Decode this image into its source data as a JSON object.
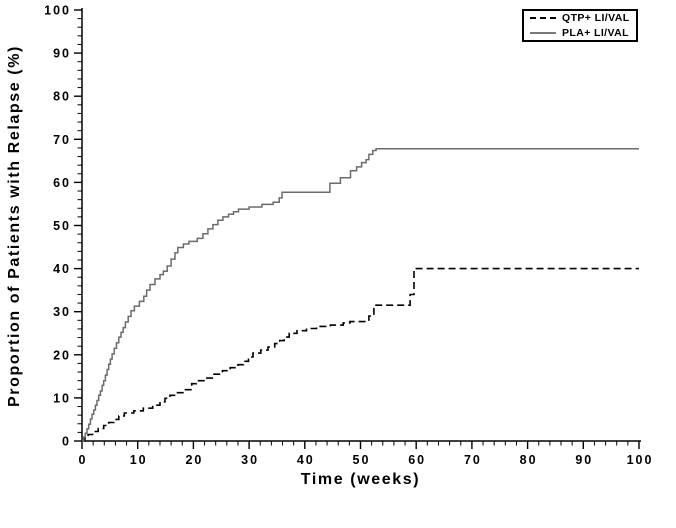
{
  "figure": {
    "background": "#ffffff",
    "axis_color": "#000000",
    "text_color": "#000000"
  },
  "legend": {
    "items": [
      {
        "label": "QTP+ LI/VAL",
        "line_style": "dashed",
        "color": "#000000"
      },
      {
        "label": "PLA+ LI/VAL",
        "line_style": "solid",
        "color": "#7a7a7a"
      }
    ]
  },
  "chart_data": {
    "type": "line",
    "subtype": "kaplan-meier-step",
    "title": "",
    "xlabel": "Time (weeks)",
    "ylabel": "Proportion of Patients with Relapse (%)",
    "xlim": [
      0,
      100
    ],
    "ylim": [
      0,
      100
    ],
    "x_major_ticks": [
      0,
      10,
      20,
      30,
      40,
      50,
      60,
      70,
      80,
      90,
      100
    ],
    "y_major_ticks": [
      0,
      10,
      20,
      30,
      40,
      50,
      60,
      70,
      80,
      90,
      100
    ],
    "x_minor_step": 2,
    "y_minor_step": 2,
    "grid": false,
    "legend_position": "top-right",
    "series": [
      {
        "name": "QTP+ LI/VAL",
        "style": "dashed",
        "color": "#000000",
        "final_value": 40,
        "points": [
          [
            0,
            0
          ],
          [
            0.5,
            0.7
          ],
          [
            1.1,
            1.5
          ],
          [
            1.9,
            2.2
          ],
          [
            2.9,
            2.9
          ],
          [
            3.9,
            3.6
          ],
          [
            4.8,
            4.3
          ],
          [
            5.7,
            5.0
          ],
          [
            6.6,
            5.8
          ],
          [
            7.6,
            6.5
          ],
          [
            9.3,
            7.0
          ],
          [
            11.0,
            7.6
          ],
          [
            12.7,
            8.3
          ],
          [
            14.0,
            9.1
          ],
          [
            14.9,
            9.9
          ],
          [
            15.8,
            10.6
          ],
          [
            17.0,
            11.2
          ],
          [
            18.4,
            11.9
          ],
          [
            19.7,
            13.3
          ],
          [
            20.5,
            14.0
          ],
          [
            22.2,
            14.6
          ],
          [
            23.7,
            15.5
          ],
          [
            25.2,
            16.3
          ],
          [
            26.6,
            17.0
          ],
          [
            28.0,
            17.7
          ],
          [
            29.0,
            18.5
          ],
          [
            29.9,
            19.5
          ],
          [
            30.7,
            20.4
          ],
          [
            32.1,
            21.1
          ],
          [
            33.4,
            21.8
          ],
          [
            34.6,
            22.6
          ],
          [
            35.5,
            23.3
          ],
          [
            36.3,
            24.1
          ],
          [
            37.2,
            25.0
          ],
          [
            38.6,
            25.6
          ],
          [
            40.3,
            26.1
          ],
          [
            42.1,
            26.6
          ],
          [
            44.6,
            26.9
          ],
          [
            46.9,
            27.4
          ],
          [
            48.1,
            27.7
          ],
          [
            51.5,
            29.0
          ],
          [
            52.4,
            31.5
          ],
          [
            58.9,
            34.0
          ],
          [
            59.6,
            40.0
          ],
          [
            100,
            40.0
          ]
        ]
      },
      {
        "name": "PLA+ LI/VAL",
        "style": "solid",
        "color": "#6b6b6b",
        "final_value": 68,
        "points": [
          [
            0,
            0
          ],
          [
            0.3,
            0.9
          ],
          [
            0.6,
            1.8
          ],
          [
            0.9,
            2.8
          ],
          [
            1.2,
            3.9
          ],
          [
            1.5,
            5.1
          ],
          [
            1.8,
            6.2
          ],
          [
            2.1,
            7.2
          ],
          [
            2.4,
            8.3
          ],
          [
            2.7,
            9.4
          ],
          [
            3.0,
            10.6
          ],
          [
            3.3,
            11.6
          ],
          [
            3.6,
            12.9
          ],
          [
            3.9,
            14.0
          ],
          [
            4.2,
            15.3
          ],
          [
            4.5,
            16.6
          ],
          [
            4.8,
            17.8
          ],
          [
            5.1,
            19.0
          ],
          [
            5.4,
            20.2
          ],
          [
            5.8,
            21.5
          ],
          [
            6.2,
            22.8
          ],
          [
            6.6,
            24.1
          ],
          [
            7.0,
            25.2
          ],
          [
            7.4,
            26.3
          ],
          [
            7.8,
            27.6
          ],
          [
            8.3,
            28.9
          ],
          [
            8.8,
            30.2
          ],
          [
            9.4,
            31.3
          ],
          [
            10.3,
            32.4
          ],
          [
            11.1,
            33.6
          ],
          [
            11.6,
            35.0
          ],
          [
            12.2,
            36.3
          ],
          [
            13.1,
            37.6
          ],
          [
            14.0,
            38.6
          ],
          [
            14.6,
            39.4
          ],
          [
            15.3,
            40.6
          ],
          [
            16.0,
            42.2
          ],
          [
            16.7,
            43.7
          ],
          [
            17.2,
            44.9
          ],
          [
            18.2,
            45.7
          ],
          [
            19.2,
            46.3
          ],
          [
            20.7,
            47.0
          ],
          [
            21.7,
            48.1
          ],
          [
            22.6,
            49.2
          ],
          [
            23.5,
            50.2
          ],
          [
            24.4,
            51.2
          ],
          [
            25.3,
            52.0
          ],
          [
            26.3,
            52.6
          ],
          [
            27.2,
            53.2
          ],
          [
            28.1,
            53.8
          ],
          [
            30.0,
            54.3
          ],
          [
            32.3,
            54.9
          ],
          [
            34.3,
            55.4
          ],
          [
            35.4,
            56.4
          ],
          [
            35.9,
            57.7
          ],
          [
            44.5,
            59.8
          ],
          [
            46.4,
            61.1
          ],
          [
            48.2,
            62.7
          ],
          [
            49.3,
            63.6
          ],
          [
            50.2,
            64.6
          ],
          [
            51.0,
            65.3
          ],
          [
            51.5,
            66.5
          ],
          [
            52.2,
            67.4
          ],
          [
            52.8,
            67.8
          ],
          [
            100,
            67.8
          ]
        ]
      }
    ]
  }
}
